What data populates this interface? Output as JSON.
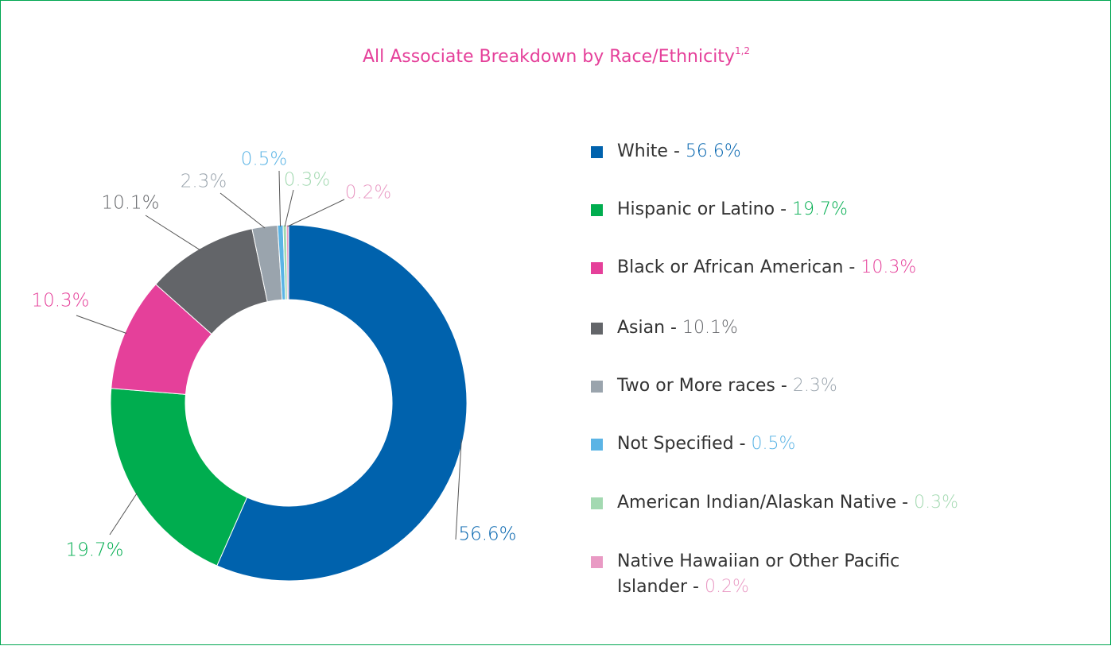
{
  "chart_data": {
    "type": "donut",
    "title": "All Associate Breakdown by Race/Ethnicity",
    "title_superscript": "1,2",
    "categories": [
      "White",
      "Hispanic or Latino",
      "Black or African American",
      "Asian",
      "Two or More races",
      "Not Specified",
      "American Indian/Alaskan Native",
      "Native Hawaiian or Other Pacific Islander"
    ],
    "values": [
      56.6,
      19.7,
      10.3,
      10.1,
      2.3,
      0.5,
      0.3,
      0.2
    ],
    "value_labels": [
      "56.6%",
      "19.7%",
      "10.3%",
      "10.1%",
      "2.3%",
      "0.5%",
      "0.3%",
      "0.2%"
    ],
    "colors": [
      "#0062ad",
      "#00ad4f",
      "#e5409a",
      "#636569",
      "#9aa4ad",
      "#5bb4e5",
      "#a3d9b1",
      "#e99ac4"
    ],
    "legend_separator": " - ",
    "legend": "right"
  }
}
